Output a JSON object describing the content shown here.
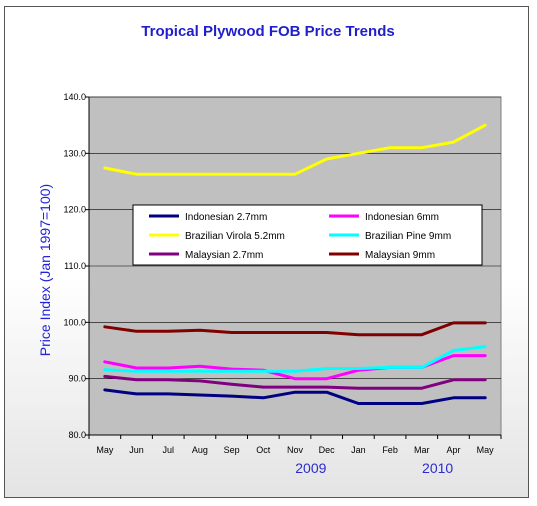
{
  "chart_data": {
    "type": "line",
    "title": "Tropical Plywood FOB Price Trends",
    "ylabel": "Price Index (Jan 1997=100)",
    "xlabel": "",
    "ylim": [
      80,
      140
    ],
    "yticks": [
      "80.0",
      "90.0",
      "100.0",
      "110.0",
      "120.0",
      "130.0",
      "140.0"
    ],
    "categories": [
      "May",
      "Jun",
      "Jul",
      "Aug",
      "Sep",
      "Oct",
      "Nov",
      "Dec",
      "Jan",
      "Feb",
      "Mar",
      "Apr",
      "May"
    ],
    "year_labels": [
      {
        "text": "2009",
        "category_index": 6.5
      },
      {
        "text": "2010",
        "category_index": 10.5
      }
    ],
    "grid": "horizontal",
    "legend_position": "center",
    "background": "#c0c0c0",
    "series": [
      {
        "name": "Indonesian 2.7mm",
        "color": "#000080",
        "values": [
          88,
          87.3,
          87.3,
          87.1,
          86.9,
          86.6,
          87.6,
          87.6,
          85.6,
          85.6,
          85.6,
          86.6,
          86.6
        ]
      },
      {
        "name": "Indonesian 6mm",
        "color": "#ff00ff",
        "values": [
          93,
          91.9,
          91.9,
          92.2,
          91.7,
          91.5,
          90,
          90,
          91.5,
          92,
          92,
          94.1,
          94.1
        ]
      },
      {
        "name": "Brazilian Virola 5.2mm",
        "color": "#ffff00",
        "values": [
          127.4,
          126.3,
          126.3,
          126.3,
          126.3,
          126.3,
          126.3,
          129,
          130,
          131,
          131,
          132,
          135
        ]
      },
      {
        "name": "Brazilian Pine 9mm",
        "color": "#00ffff",
        "values": [
          91.6,
          91.3,
          91.3,
          91.3,
          91.3,
          91.3,
          91.3,
          91.8,
          91.8,
          92,
          92,
          95,
          95.7
        ]
      },
      {
        "name": "Malaysian 2.7mm",
        "color": "#800080",
        "values": [
          90.4,
          89.8,
          89.8,
          89.6,
          89,
          88.5,
          88.5,
          88.5,
          88.3,
          88.3,
          88.3,
          89.8,
          89.8
        ]
      },
      {
        "name": "Malaysian 9mm",
        "color": "#800000",
        "values": [
          99.2,
          98.4,
          98.4,
          98.6,
          98.2,
          98.2,
          98.2,
          98.2,
          97.8,
          97.8,
          97.8,
          99.9,
          99.9
        ]
      }
    ]
  }
}
